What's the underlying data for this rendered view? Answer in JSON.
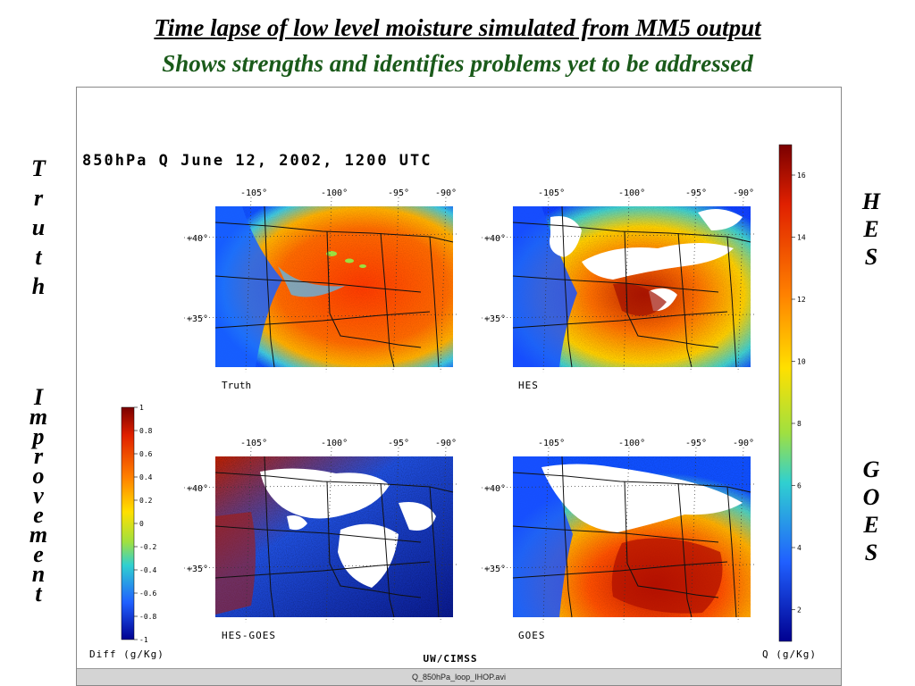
{
  "slide": {
    "title": "Time lapse of low level moisture simulated from MM5 output",
    "subtitle": "Shows strengths and identifies problems yet to be addressed",
    "left_label_truth": "Truth",
    "left_label_improvement": "Improvement",
    "right_label_hes": "HES",
    "right_label_goes": "GOES"
  },
  "figure": {
    "header": "850hPa Q  June 12, 2002, 1200 UTC",
    "footer_left": "Diff (g/Kg)",
    "footer_center": "UW/CIMSS",
    "footer_right": "Q (g/Kg)",
    "filename": "Q_850hPa_loop_IHOP.avi",
    "panels": [
      {
        "label": "Truth"
      },
      {
        "label": "HES"
      },
      {
        "label": "HES-GOES"
      },
      {
        "label": "GOES"
      }
    ],
    "lon_labels": [
      "-105°",
      "-100°",
      "-95°",
      "-90°"
    ],
    "lat_labels": [
      "+40°",
      "+35°"
    ],
    "q_colorbar": {
      "ticks": [
        "16",
        "14",
        "12",
        "10",
        "8",
        "6",
        "4",
        "2"
      ],
      "colors": [
        "#7a0000",
        "#e02000",
        "#ff8000",
        "#ffe000",
        "#a0e040",
        "#30d0d0",
        "#2060ff",
        "#000090"
      ]
    },
    "diff_colorbar": {
      "ticks": [
        "1",
        "0.8",
        "0.6",
        "0.4",
        "0.2",
        "0",
        "-0.2",
        "-0.4",
        "-0.6",
        "-0.8",
        "-1"
      ],
      "colors": [
        "#7a0000",
        "#e02000",
        "#ff8000",
        "#ffe000",
        "#a0e040",
        "#30d0d0",
        "#2060ff",
        "#000090"
      ]
    }
  }
}
